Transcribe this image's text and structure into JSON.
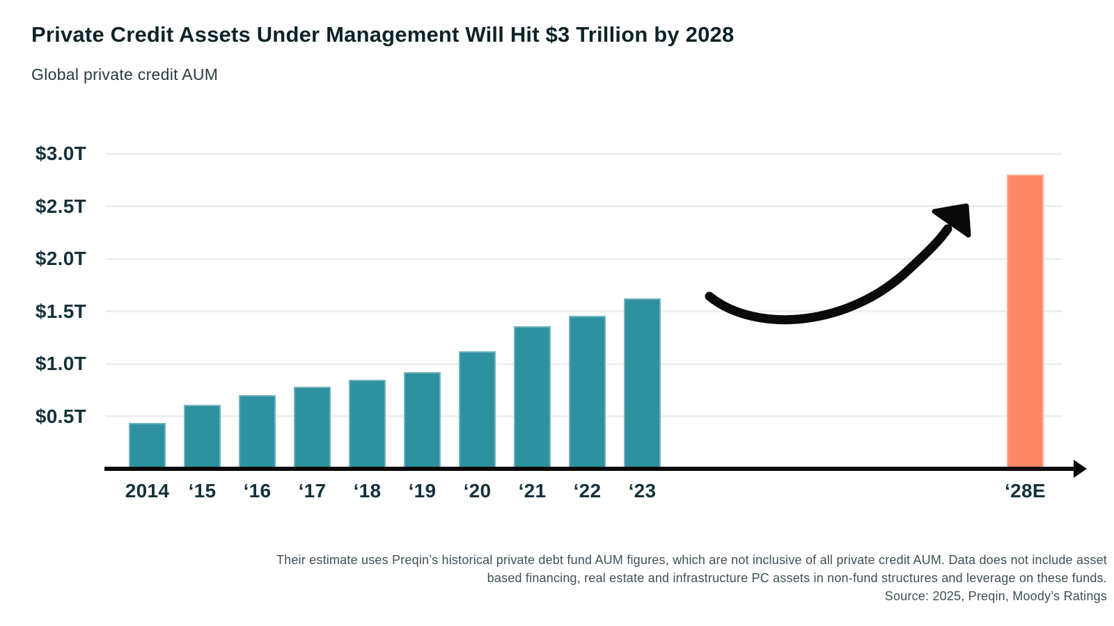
{
  "header": {
    "title": "Private Credit Assets Under Management Will Hit $3 Trillion by 2028",
    "subtitle": "Global private credit AUM"
  },
  "footnote": {
    "line1": "Their estimate uses Preqin’s historical private debt fund AUM figures, which are not inclusive of all private credit AUM. Data does not include asset",
    "line2": "based financing, real estate and infrastructure PC assets in non-fund structures and leverage on these funds.",
    "line3": "Source: 2025, Preqin, Moody’s Ratings"
  },
  "colors": {
    "bar_teal": "#2E91A0",
    "bar_orange": "#FC8765",
    "axis_line": "#0A0A0A",
    "gridline": "#EFEFEF",
    "title_text": "#0F2328",
    "subtitle_text": "#2A3A40",
    "axis_label_text": "#15313A",
    "footnote_text": "#3E5057",
    "annotation_arrow": "#0A0A0A"
  },
  "chart_data": {
    "type": "bar",
    "title": "Private Credit Assets Under Management Will Hit $3 Trillion by 2028",
    "subtitle": "Global private credit AUM",
    "unit": "USD trillions",
    "categories": [
      "2014",
      "‘15",
      "‘16",
      "‘17",
      "‘18",
      "‘19",
      "‘20",
      "‘21",
      "‘22",
      "‘23",
      "‘28E"
    ],
    "values": [
      0.44,
      0.61,
      0.7,
      0.78,
      0.85,
      0.92,
      1.12,
      1.36,
      1.46,
      1.62,
      2.8
    ],
    "ylim": [
      0,
      3.0
    ],
    "y_ticks": [
      {
        "value": 0.5,
        "label": "$0.5T"
      },
      {
        "value": 1.0,
        "label": "$1.0T"
      },
      {
        "value": 1.5,
        "label": "$1.5T"
      },
      {
        "value": 2.0,
        "label": "$2.0T"
      },
      {
        "value": 2.5,
        "label": "$2.5T"
      },
      {
        "value": 3.0,
        "label": "$3.0T"
      }
    ],
    "grid": true,
    "legend_position": "none",
    "highlight_last_bar": true,
    "gap_before_last_bar": true,
    "annotation": "black upward-curving arrow between the ‘23 bar and the ‘28E estimate bar"
  }
}
